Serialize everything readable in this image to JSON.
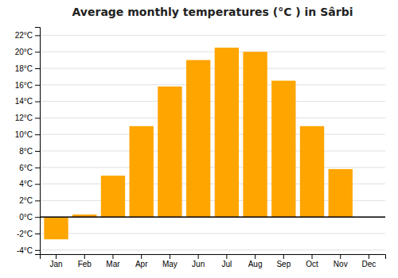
{
  "chart_data": {
    "type": "bar",
    "title": "Average monthly temperatures (°C ) in Sârbi",
    "categories": [
      "Jan",
      "Feb",
      "Mar",
      "Apr",
      "May",
      "Jun",
      "Jul",
      "Aug",
      "Sep",
      "Oct",
      "Nov",
      "Dec"
    ],
    "values": [
      -2.7,
      0.3,
      5.0,
      11.0,
      15.8,
      19.0,
      20.5,
      20.0,
      16.5,
      11.0,
      5.8,
      0.0
    ],
    "color": "#FFA500",
    "ylim": [
      -4.5,
      23
    ],
    "yticks": [
      {
        "value": -4,
        "label": "-4°C"
      },
      {
        "value": -2,
        "label": "-2°C"
      },
      {
        "value": 0,
        "label": "0°C"
      },
      {
        "value": 2,
        "label": "2°C"
      },
      {
        "value": 4,
        "label": "4°C"
      },
      {
        "value": 6,
        "label": "6°C"
      },
      {
        "value": 8,
        "label": "8°C"
      },
      {
        "value": 10,
        "label": "10°C"
      },
      {
        "value": 12,
        "label": "12°C"
      },
      {
        "value": 14,
        "label": "14°C"
      },
      {
        "value": 16,
        "label": "16°C"
      },
      {
        "value": 18,
        "label": "18°C"
      },
      {
        "value": 20,
        "label": "20°C"
      },
      {
        "value": 22,
        "label": "22°C"
      }
    ],
    "grid": true
  }
}
